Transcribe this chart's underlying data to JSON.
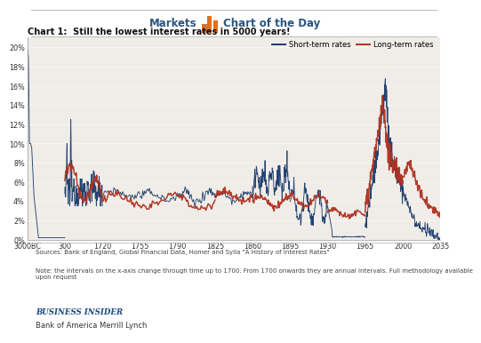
{
  "chart_title": "Chart 1:  Still the lowest interest rates in 5000 years!",
  "short_term_label": "Short-term rates",
  "long_term_label": "Long-term rates",
  "short_term_color": "#1a3a6b",
  "long_term_color": "#b03020",
  "source_text": "Sources: Bank of England, Global Financial Data, Homer and Sylla \"A History of Interest Rates\"",
  "note_text": "Note: the intervals on the x-axis change through time up to 1700. From 1700 onwards they are annual intervals. Full methodology available\nupon request",
  "footer_brand": "Business Insider",
  "bottom_text": "Bank of America Merrill Lynch",
  "xtick_labels": [
    "3000BC",
    "300",
    "1720",
    "1755",
    "1790",
    "1825",
    "1860",
    "1895",
    "1930",
    "1965",
    "2000",
    "2035"
  ],
  "ylim": [
    0,
    21
  ],
  "plot_bg_color": "#f0ede8",
  "header_color": "#2a5580",
  "icon_color": "#e07020"
}
